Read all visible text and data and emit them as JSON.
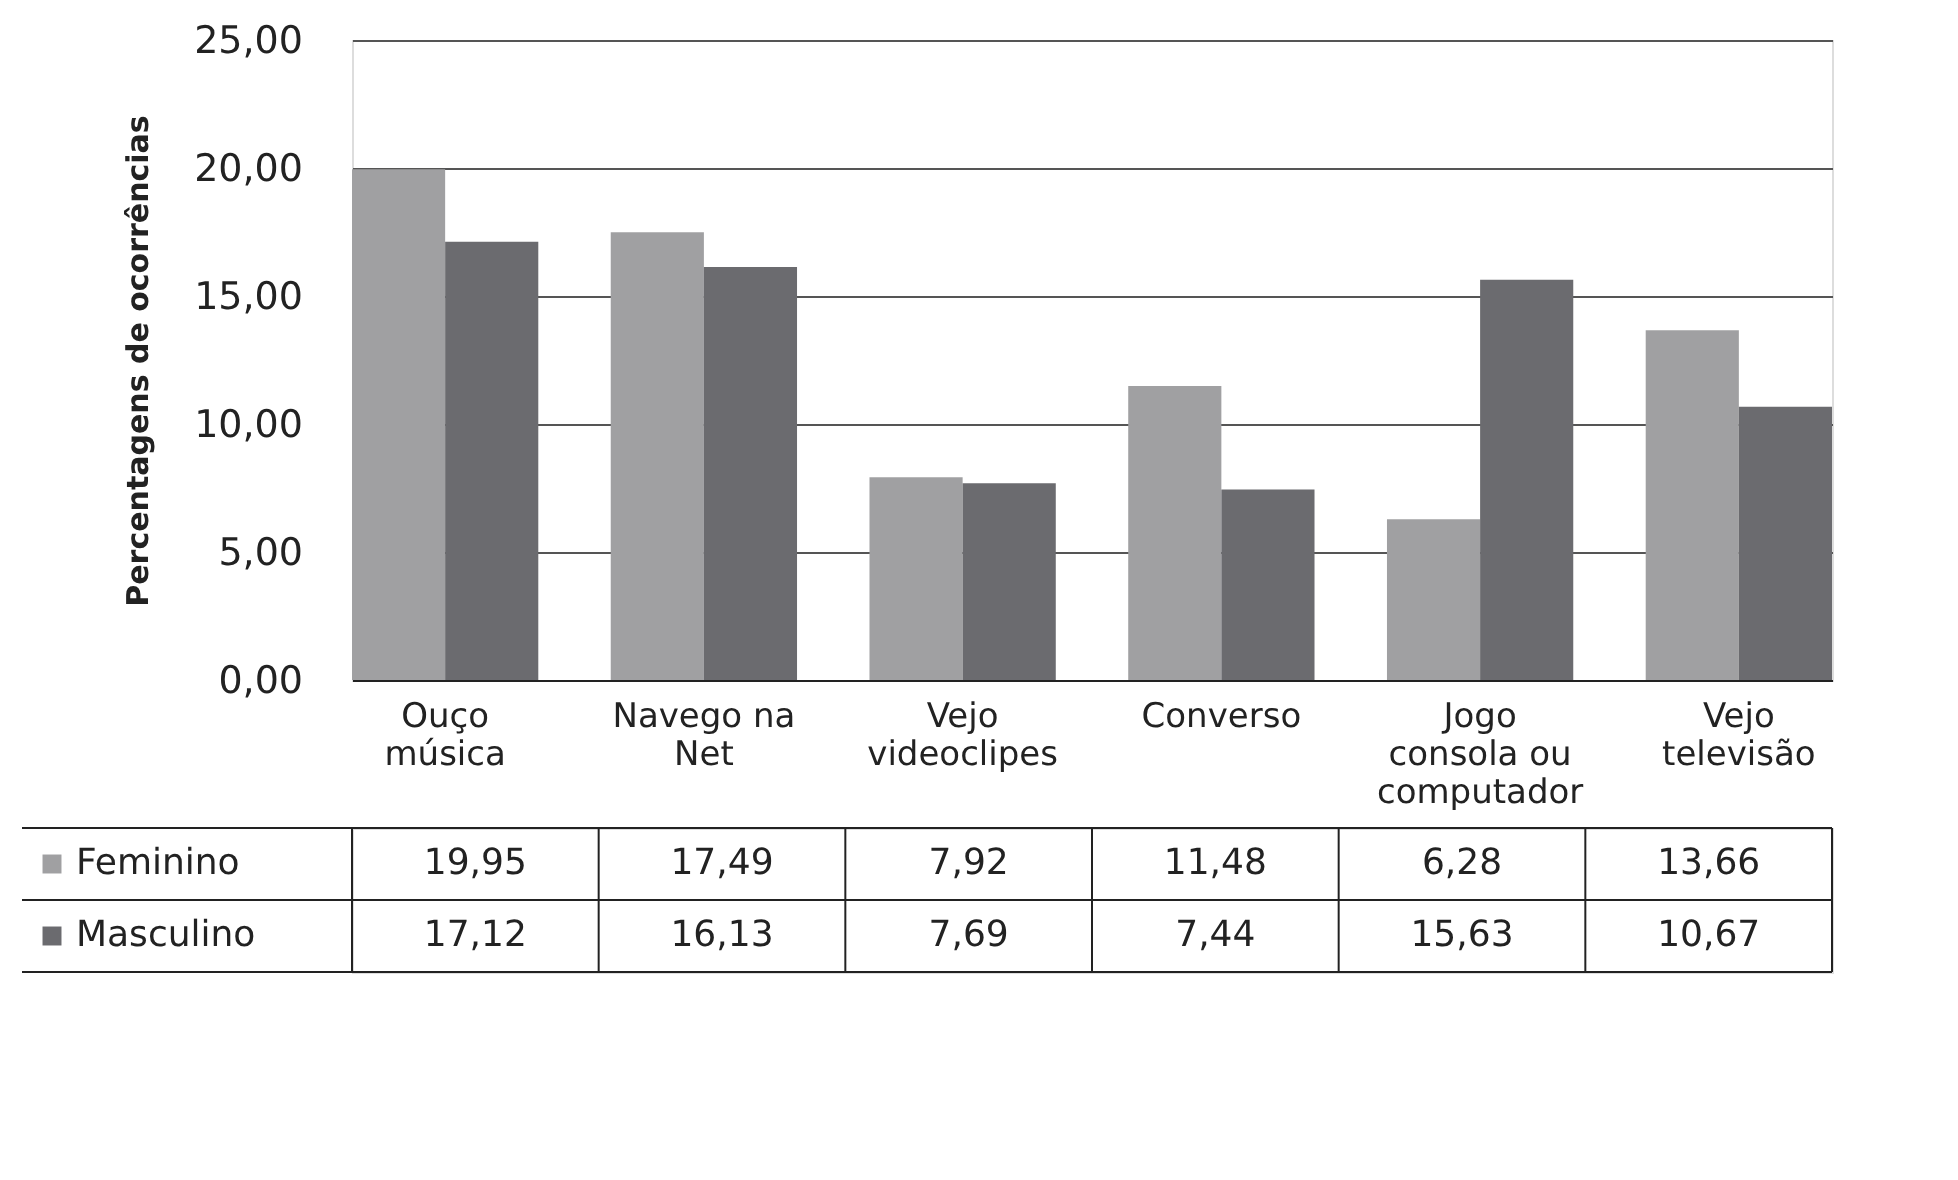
{
  "chart_data": {
    "type": "bar",
    "ylabel": "Percentagens de ocorrências",
    "categories": [
      "Ouço música",
      "Navego na Net",
      "Vejo videoclipes",
      "Converso",
      "Jogo consola ou computador",
      "Vejo televisão"
    ],
    "series": [
      {
        "name": "Feminino",
        "color": "#a0a0a2",
        "values": [
          19.95,
          17.49,
          7.92,
          11.48,
          6.28,
          13.66
        ],
        "value_labels": [
          "19,95",
          "17,49",
          "7,92",
          "11,48",
          "6,28",
          "13,66"
        ]
      },
      {
        "name": "Masculino",
        "color": "#6b6b6f",
        "values": [
          17.12,
          16.13,
          7.69,
          7.44,
          15.63,
          10.67
        ],
        "value_labels": [
          "17,12",
          "16,13",
          "7,69",
          "7,44",
          "15,63",
          "10,67"
        ]
      }
    ],
    "ylim": [
      0,
      25
    ],
    "yticks": [
      {
        "value": 0,
        "label": "0,00"
      },
      {
        "value": 5,
        "label": "5,00"
      },
      {
        "value": 10,
        "label": "10,00"
      },
      {
        "value": 15,
        "label": "15,00"
      },
      {
        "value": 20,
        "label": "20,00"
      },
      {
        "value": 25,
        "label": "25,00"
      }
    ],
    "grid": "y",
    "legend": "bottom left"
  }
}
